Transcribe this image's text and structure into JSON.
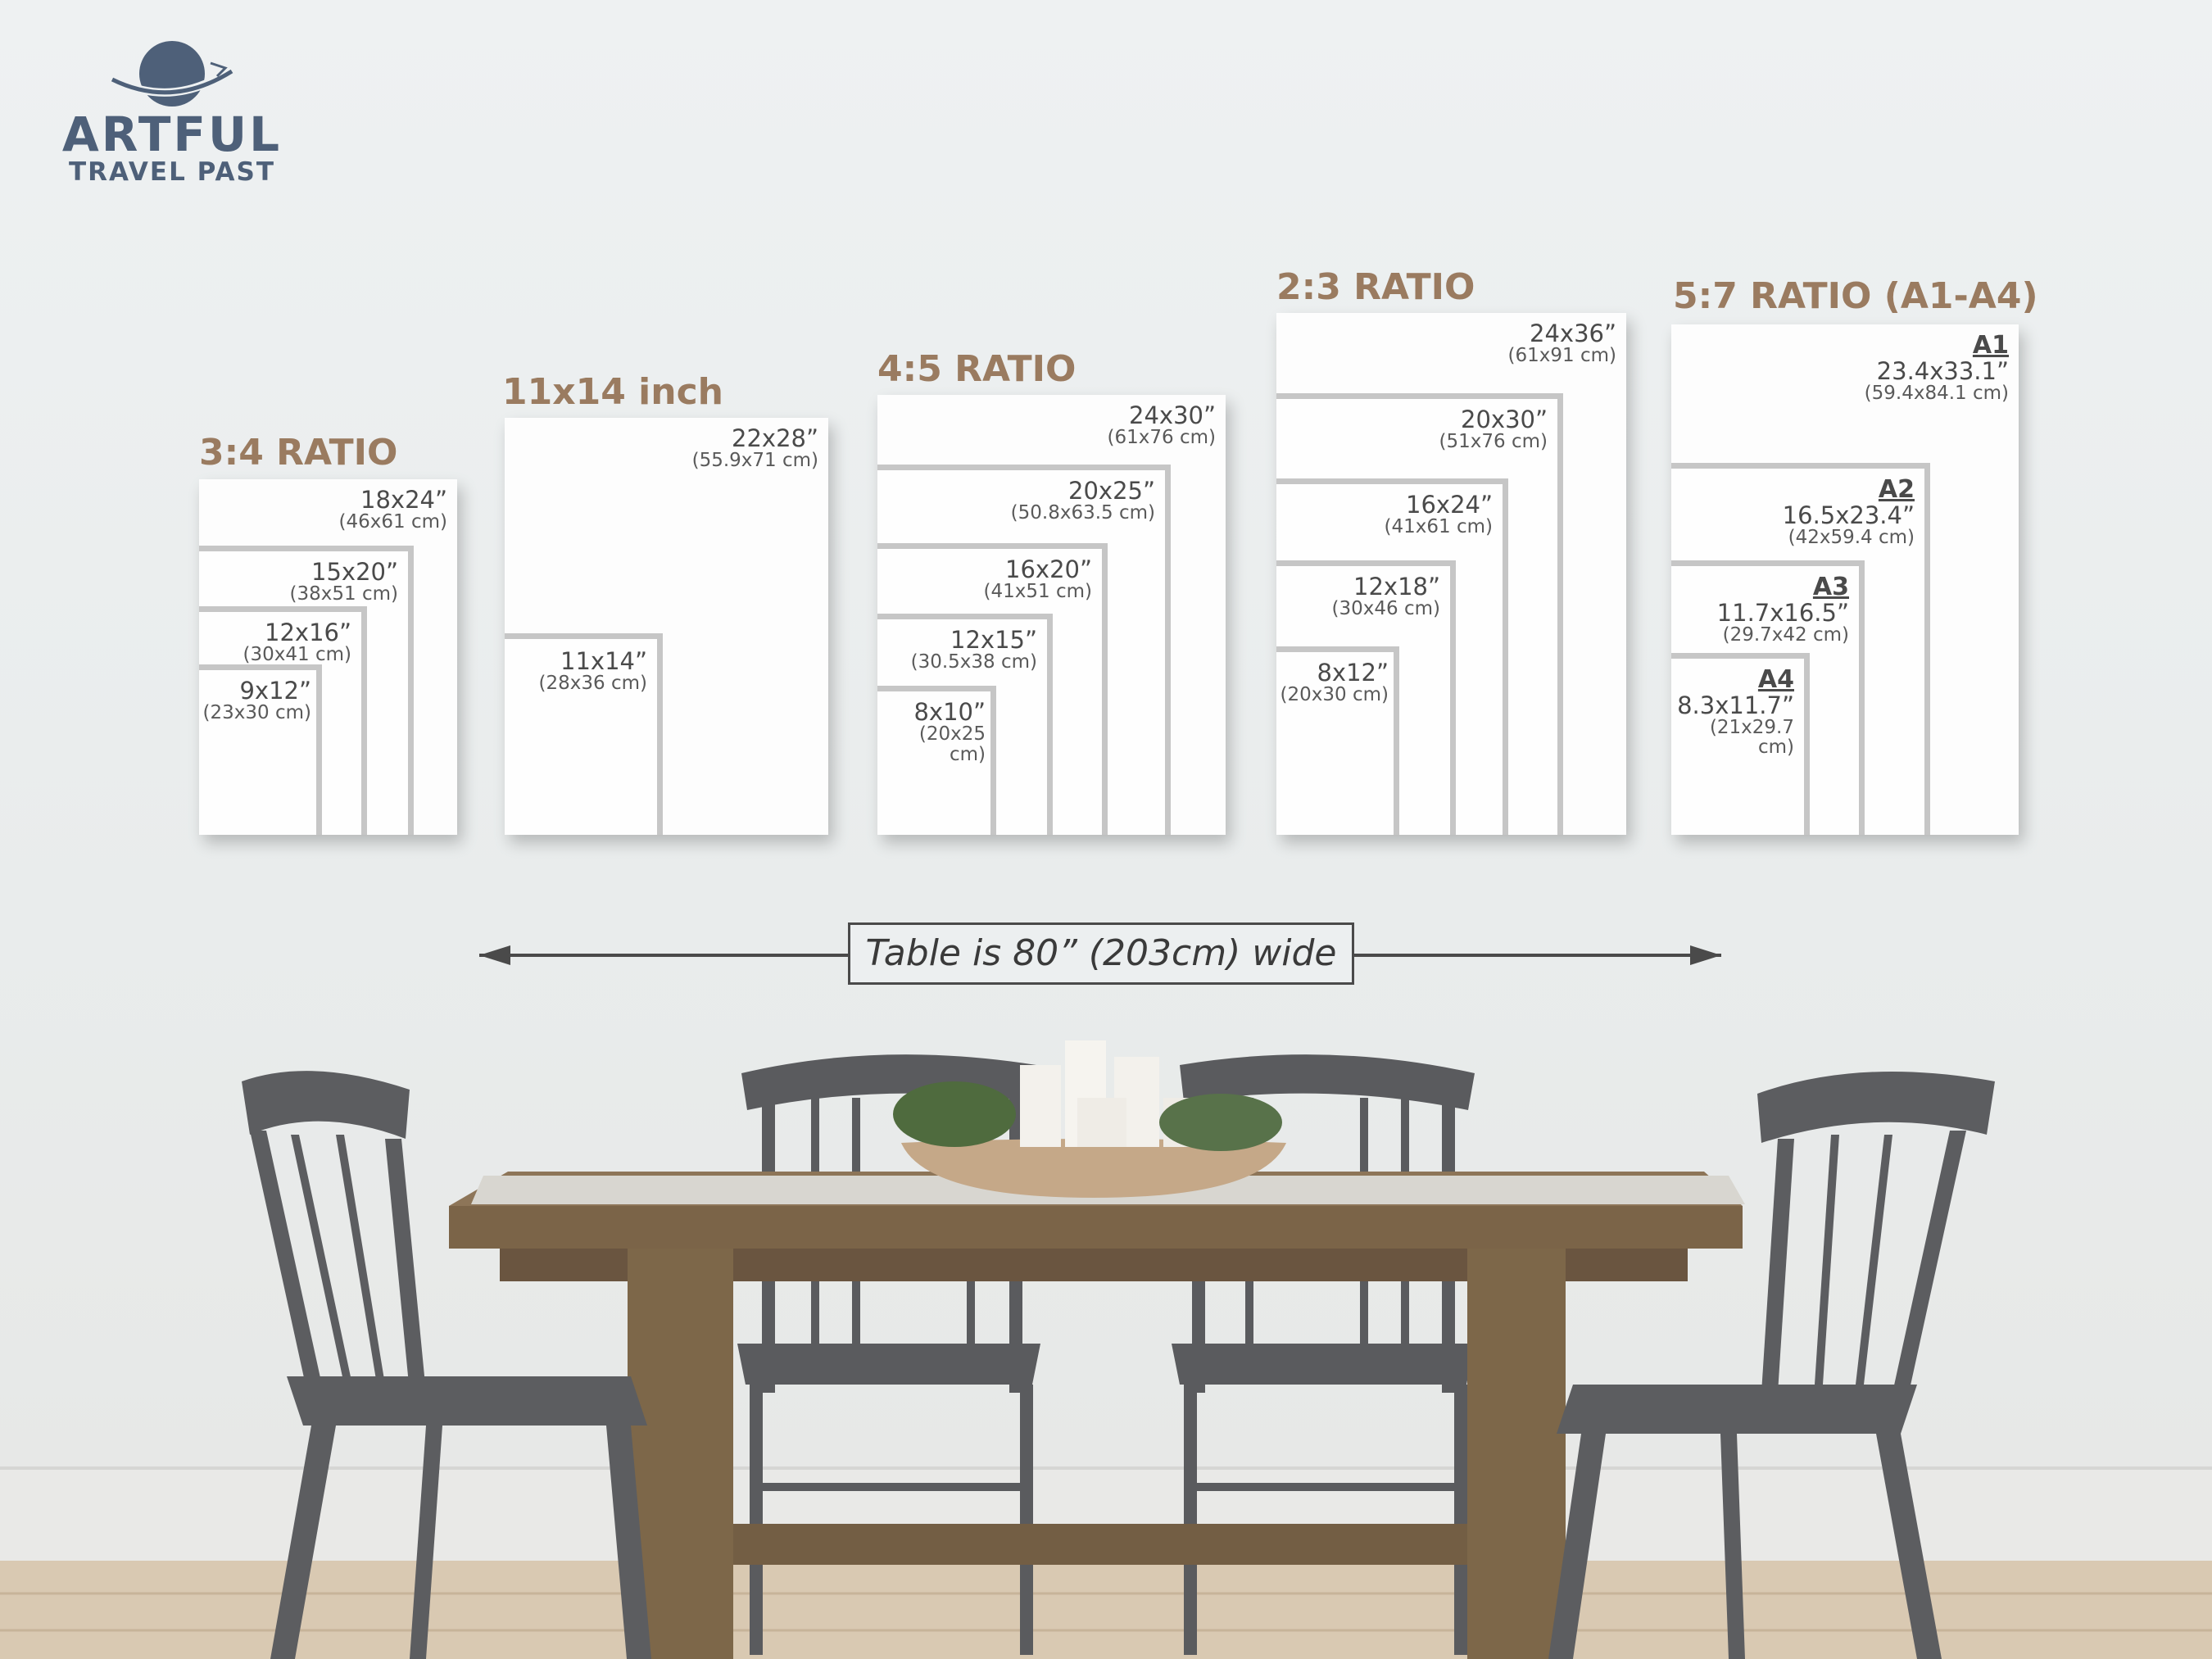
{
  "logo": {
    "line1": "ARTFUL",
    "line2": "TRAVEL PAST",
    "icon": "globe-with-orbit-icon",
    "color": "#4e6079"
  },
  "accent_color": "#9a7b60",
  "groups": [
    {
      "title": "3:4 RATIO",
      "sizes": [
        {
          "inch": "18x24”",
          "cm": "(46x61 cm)"
        },
        {
          "inch": "15x20”",
          "cm": "(38x51 cm)"
        },
        {
          "inch": "12x16”",
          "cm": "(30x41 cm)"
        },
        {
          "inch": "9x12”",
          "cm": "(23x30 cm)"
        }
      ]
    },
    {
      "title": "11x14 inch",
      "sizes": [
        {
          "inch": "22x28”",
          "cm": "(55.9x71 cm)"
        },
        {
          "inch": "11x14”",
          "cm": "(28x36 cm)"
        }
      ]
    },
    {
      "title": "4:5 RATIO",
      "sizes": [
        {
          "inch": "24x30”",
          "cm": "(61x76 cm)"
        },
        {
          "inch": "20x25”",
          "cm": "(50.8x63.5 cm)"
        },
        {
          "inch": "16x20”",
          "cm": "(41x51 cm)"
        },
        {
          "inch": "12x15”",
          "cm": "(30.5x38 cm)"
        },
        {
          "inch": "8x10”",
          "cm": "(20x25 cm)"
        }
      ]
    },
    {
      "title": "2:3 RATIO",
      "sizes": [
        {
          "inch": "24x36”",
          "cm": "(61x91 cm)"
        },
        {
          "inch": "20x30”",
          "cm": "(51x76 cm)"
        },
        {
          "inch": "16x24”",
          "cm": "(41x61 cm)"
        },
        {
          "inch": "12x18”",
          "cm": "(30x46 cm)"
        },
        {
          "inch": "8x12”",
          "cm": "(20x30 cm)"
        }
      ]
    },
    {
      "title": "5:7 RATIO (A1-A4)",
      "sizes": [
        {
          "name": "A1",
          "inch": "23.4x33.1”",
          "cm": "(59.4x84.1 cm)"
        },
        {
          "name": "A2",
          "inch": "16.5x23.4”",
          "cm": "(42x59.4 cm)"
        },
        {
          "name": "A3",
          "inch": "11.7x16.5”",
          "cm": "(29.7x42 cm)"
        },
        {
          "name": "A4",
          "inch": "8.3x11.7”",
          "cm": "(21x29.7 cm)"
        }
      ]
    }
  ],
  "measure": {
    "label": "Table is 80” (203cm) wide"
  }
}
